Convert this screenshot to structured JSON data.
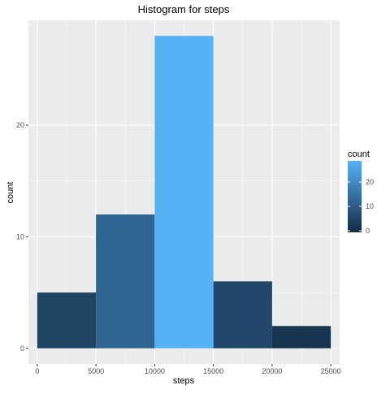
{
  "chart_data": {
    "type": "bar",
    "title": "Histogram for steps",
    "xlabel": "steps",
    "ylabel": "count",
    "x_ticks": [
      0,
      5000,
      10000,
      15000,
      20000,
      25000
    ],
    "y_ticks": [
      0,
      10,
      20
    ],
    "xlim": [
      -750,
      25750
    ],
    "ylim": [
      -1.4,
      29.4
    ],
    "bins": [
      {
        "x0": 0,
        "x1": 5000,
        "count": 5
      },
      {
        "x0": 5000,
        "x1": 10000,
        "count": 12
      },
      {
        "x0": 10000,
        "x1": 15000,
        "count": 28
      },
      {
        "x0": 15000,
        "x1": 20000,
        "count": 6
      },
      {
        "x0": 20000,
        "x1": 25000,
        "count": 2
      }
    ],
    "legend": {
      "title": "count",
      "ticks": [
        0,
        10,
        20
      ],
      "low_color": "#132B43",
      "high_color": "#56B1F7",
      "range": [
        0,
        28
      ],
      "placement": "right"
    },
    "grid": true,
    "panel_color": "#EBEBEB",
    "grid_color": "#FFFFFF"
  }
}
